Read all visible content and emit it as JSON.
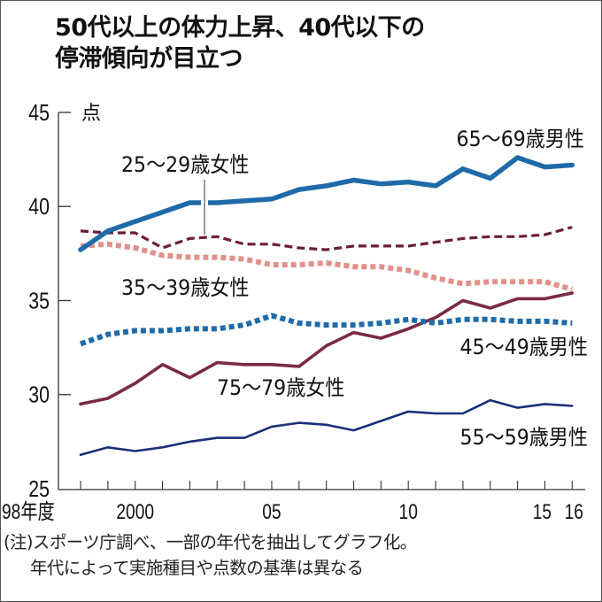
{
  "title": {
    "line1": "50代以上の体力上昇、40代以下の",
    "line2": "停滞傾向が目立つ"
  },
  "note": {
    "line1": "(注)スポーツ庁調べ、一部の年代を抽出してグラフ化。",
    "line2": "年代によって実施種目や点数の基準は異なる"
  },
  "chart_data": {
    "type": "line",
    "title": "50代以上の体力上昇、40代以下の停滞傾向が目立つ",
    "ylabel": "点",
    "xlabel": "",
    "ylim": [
      25,
      45
    ],
    "yticks": [
      {
        "value": 45,
        "label": "45"
      },
      {
        "value": 40,
        "label": "40"
      },
      {
        "value": 35,
        "label": "35"
      },
      {
        "value": 30,
        "label": "30"
      },
      {
        "value": 25,
        "label": "25"
      }
    ],
    "x": [
      1998,
      1999,
      2000,
      2001,
      2002,
      2003,
      2004,
      2005,
      2006,
      2007,
      2008,
      2009,
      2010,
      2011,
      2012,
      2013,
      2014,
      2015,
      2016
    ],
    "xtick_labels": [
      {
        "value": 1998,
        "label": "98年度"
      },
      {
        "value": 2000,
        "label": "2000"
      },
      {
        "value": 2005,
        "label": "05"
      },
      {
        "value": 2010,
        "label": "10"
      },
      {
        "value": 2015,
        "label": "15"
      },
      {
        "value": 2016,
        "label": "16"
      }
    ],
    "grid": false,
    "series": [
      {
        "name": "65〜69歳男性",
        "color": "#1f6aa8",
        "style": "solid-thick",
        "values": [
          37.7,
          38.7,
          39.2,
          39.7,
          40.2,
          40.2,
          40.3,
          40.4,
          40.9,
          41.1,
          41.4,
          41.2,
          41.3,
          41.1,
          42.0,
          41.5,
          42.6,
          42.1,
          42.2
        ]
      },
      {
        "name": "25〜29歳女性",
        "color": "#6b1d3a",
        "style": "dashed",
        "values": [
          38.7,
          38.6,
          38.6,
          37.8,
          38.3,
          38.4,
          38.0,
          38.0,
          37.8,
          37.7,
          37.9,
          37.9,
          37.9,
          38.1,
          38.3,
          38.4,
          38.4,
          38.5,
          38.9
        ]
      },
      {
        "name": "35〜39歳女性",
        "color": "#e0918a",
        "style": "dotted-thick",
        "values": [
          37.9,
          38.0,
          37.8,
          37.4,
          37.3,
          37.3,
          37.2,
          36.9,
          36.9,
          37.0,
          36.8,
          36.8,
          36.6,
          36.2,
          35.9,
          36.0,
          36.0,
          36.0,
          35.6
        ]
      },
      {
        "name": "45〜49歳男性",
        "color": "#1f6aa8",
        "style": "dotted-thick",
        "values": [
          32.7,
          33.2,
          33.4,
          33.4,
          33.5,
          33.5,
          33.7,
          34.2,
          33.8,
          33.7,
          33.7,
          33.8,
          34.0,
          33.8,
          34.0,
          34.0,
          33.9,
          33.9,
          33.8
        ]
      },
      {
        "name": "75〜79歳女性",
        "color": "#7a2a45",
        "style": "solid",
        "values": [
          29.5,
          29.8,
          30.6,
          31.6,
          30.9,
          31.7,
          31.6,
          31.6,
          31.5,
          32.6,
          33.3,
          33.0,
          33.5,
          34.1,
          35.0,
          34.6,
          35.1,
          35.1,
          35.4
        ]
      },
      {
        "name": "55〜59歳男性",
        "color": "#1b2f7a",
        "style": "solid-thin",
        "values": [
          26.8,
          27.2,
          27.0,
          27.2,
          27.5,
          27.7,
          27.7,
          28.3,
          28.5,
          28.4,
          28.1,
          28.6,
          29.1,
          29.0,
          29.0,
          29.7,
          29.3,
          29.5,
          29.4
        ]
      }
    ],
    "annotations": [
      {
        "text": "65〜69歳男性",
        "series": 0
      },
      {
        "text": "25〜29歳女性",
        "series": 1
      },
      {
        "text": "35〜39歳女性",
        "series": 2
      },
      {
        "text": "45〜49歳男性",
        "series": 3
      },
      {
        "text": "75〜79歳女性",
        "series": 4
      },
      {
        "text": "55〜59歳男性",
        "series": 5
      }
    ]
  }
}
